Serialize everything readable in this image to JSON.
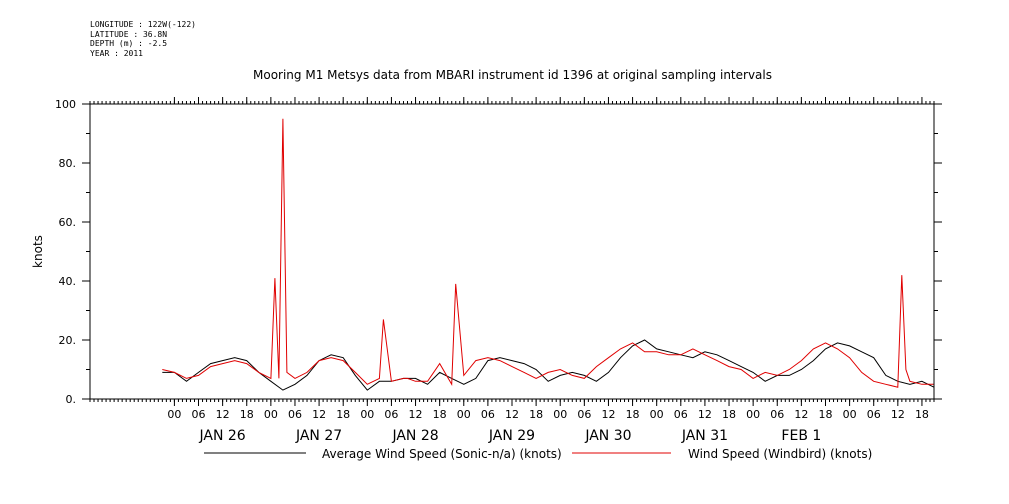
{
  "meta": {
    "lines": [
      "LONGITUDE : 122W(-122)",
      "LATITUDE : 36.8N",
      "DEPTH (m) : -2.5",
      "YEAR : 2011"
    ]
  },
  "chart_data": {
    "type": "line",
    "title": "Mooring M1 Metsys data from MBARI instrument id 1396 at original sampling intervals",
    "ylabel": "knots",
    "ylim": [
      0,
      100
    ],
    "yticks": [
      0,
      20,
      40,
      60,
      80,
      100
    ],
    "ytick_labels": [
      "0.",
      "20.",
      "40.",
      "60.",
      "80.",
      "100"
    ],
    "xlim_hours": [
      -21,
      189
    ],
    "x_hour_ticks": [
      0,
      6,
      12,
      18,
      24,
      30,
      36,
      42,
      48,
      54,
      60,
      66,
      72,
      78,
      84,
      90,
      96,
      102,
      108,
      114,
      120,
      126,
      132,
      138,
      144,
      150,
      156,
      162,
      168,
      174,
      180,
      186
    ],
    "x_hour_labels": [
      "00",
      "06",
      "12",
      "18",
      "00",
      "06",
      "12",
      "18",
      "00",
      "06",
      "12",
      "18",
      "00",
      "06",
      "12",
      "18",
      "00",
      "06",
      "12",
      "18",
      "00",
      "06",
      "12",
      "18",
      "00",
      "06",
      "12",
      "18",
      "00",
      "06",
      "12",
      "18"
    ],
    "day_labels": [
      "JAN 26",
      "JAN 27",
      "JAN 28",
      "JAN 29",
      "JAN 30",
      "JAN 31",
      "FEB 1"
    ],
    "x_unit_note": "x values are hours from 2011-01-26 00:00",
    "grid": false,
    "legend_position": "bottom",
    "series": [
      {
        "name": "Average Wind Speed (Sonic-n/a) (knots)",
        "color": "#000000",
        "x": [
          -3,
          0,
          3,
          6,
          9,
          12,
          15,
          18,
          21,
          24,
          27,
          30,
          33,
          36,
          39,
          42,
          45,
          48,
          51,
          54,
          57,
          60,
          63,
          66,
          69,
          72,
          75,
          78,
          81,
          84,
          87,
          90,
          93,
          96,
          99,
          102,
          105,
          108,
          111,
          114,
          117,
          120,
          123,
          126,
          129,
          132,
          135,
          138,
          141,
          144,
          147,
          150,
          153,
          156,
          159,
          162,
          165,
          168,
          171,
          174,
          177,
          180,
          183,
          186,
          189
        ],
        "y": [
          9,
          9,
          6,
          9,
          12,
          13,
          14,
          13,
          9,
          6,
          3,
          5,
          8,
          13,
          15,
          14,
          8,
          3,
          6,
          6,
          7,
          7,
          5,
          9,
          7,
          5,
          7,
          13,
          14,
          13,
          12,
          10,
          6,
          8,
          9,
          8,
          6,
          9,
          14,
          18,
          20,
          17,
          16,
          15,
          14,
          16,
          15,
          13,
          11,
          9,
          6,
          8,
          8,
          10,
          13,
          17,
          19,
          18,
          16,
          14,
          8,
          6,
          5,
          6,
          4
        ]
      },
      {
        "name": "Wind Speed (Windbird) (knots)",
        "color": "#e00000",
        "x": [
          -3,
          0,
          3,
          6,
          9,
          12,
          15,
          18,
          21,
          24,
          25,
          26,
          27,
          28,
          30,
          33,
          36,
          39,
          42,
          45,
          48,
          51,
          52,
          54,
          57,
          58,
          60,
          63,
          66,
          69,
          70,
          72,
          75,
          78,
          81,
          84,
          87,
          90,
          93,
          96,
          99,
          102,
          105,
          108,
          111,
          114,
          117,
          120,
          123,
          126,
          129,
          132,
          135,
          138,
          141,
          144,
          147,
          150,
          153,
          156,
          159,
          162,
          165,
          168,
          171,
          174,
          177,
          180,
          181,
          182,
          183,
          186,
          189
        ],
        "y": [
          10,
          9,
          7,
          8,
          11,
          12,
          13,
          12,
          9,
          7,
          41,
          7,
          95,
          9,
          7,
          9,
          13,
          14,
          13,
          9,
          5,
          7,
          27,
          6,
          7,
          7,
          6,
          6,
          12,
          5,
          39,
          8,
          13,
          14,
          13,
          11,
          9,
          7,
          9,
          10,
          8,
          7,
          11,
          14,
          17,
          19,
          16,
          16,
          15,
          15,
          17,
          15,
          13,
          11,
          10,
          7,
          9,
          8,
          10,
          13,
          17,
          19,
          17,
          14,
          9,
          6,
          5,
          4,
          42,
          10,
          6,
          5,
          5
        ]
      }
    ]
  }
}
